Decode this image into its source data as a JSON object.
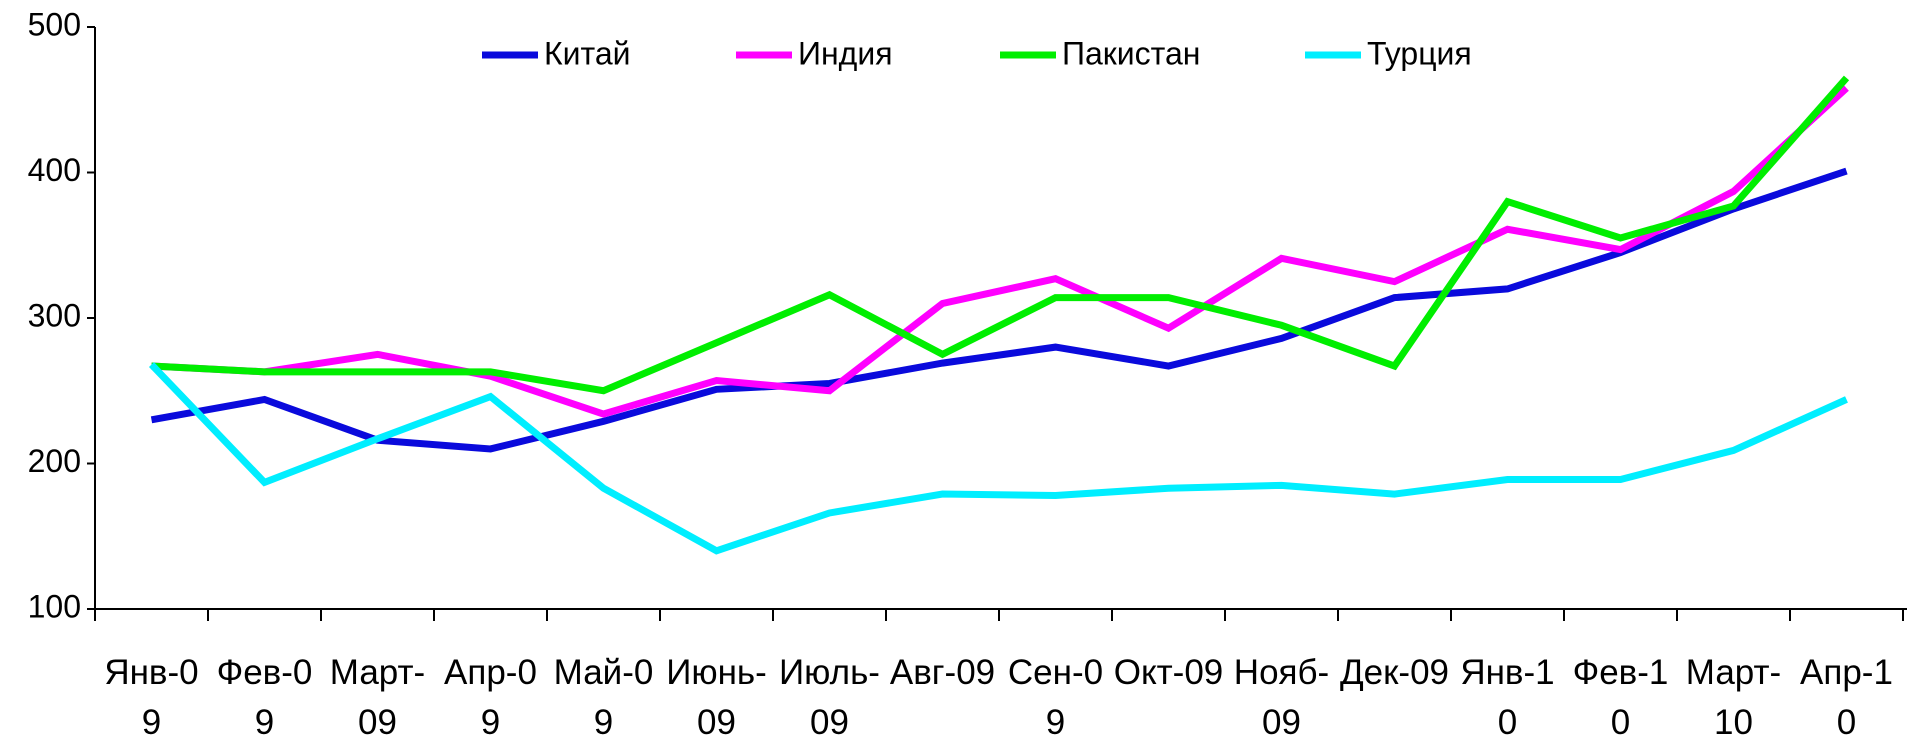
{
  "chart_data": {
    "type": "line",
    "categories": [
      "Янв-09",
      "Фев-09",
      "Март-09",
      "Апр-09",
      "Май-09",
      "Июнь-09",
      "Июль-09",
      "Авг-09",
      "Сен-09",
      "Окт-09",
      "Нояб-09",
      "Дек-09",
      "Янв-10",
      "Фев-10",
      "Март-10",
      "Апр-10"
    ],
    "series": [
      {
        "name": "Китай",
        "color": "#0a0adc",
        "values": [
          230,
          244,
          216,
          210,
          229,
          251,
          255,
          269,
          280,
          267,
          286,
          314,
          320,
          345,
          375,
          401
        ]
      },
      {
        "name": "Индия",
        "color": "#ff00ff",
        "values": [
          267,
          263,
          275,
          260,
          234,
          257,
          250,
          310,
          327,
          293,
          341,
          325,
          361,
          347,
          387,
          458
        ]
      },
      {
        "name": "Пакистан",
        "color": "#00ee00",
        "values": [
          267,
          263,
          263,
          263,
          250,
          283,
          316,
          275,
          314,
          314,
          295,
          267,
          380,
          355,
          377,
          465
        ]
      },
      {
        "name": "Турция",
        "color": "#00eeff",
        "values": [
          268,
          187,
          217,
          246,
          183,
          140,
          166,
          179,
          178,
          183,
          185,
          179,
          189,
          189,
          209,
          244
        ]
      }
    ],
    "ylim": [
      100,
      500
    ],
    "yticks": [
      100,
      200,
      300,
      400,
      500
    ]
  }
}
